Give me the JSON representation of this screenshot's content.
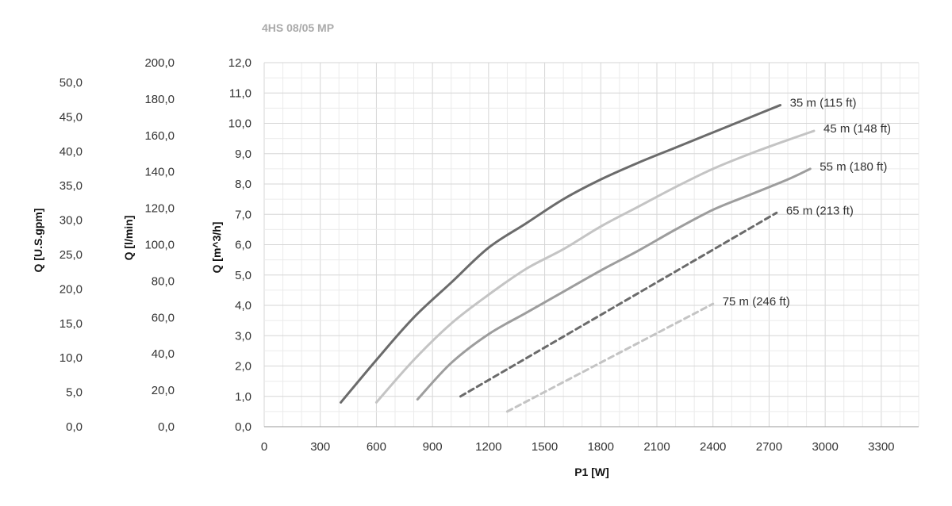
{
  "chart_data": {
    "type": "line",
    "title": "4HS 08/05 MP",
    "xlabel": "P1 [W]",
    "ylabel": "Q [m^3/h]",
    "ylabel_lmin": "Q [l/min]",
    "ylabel_gpm": "Q [U.S.gpm]",
    "xlim": [
      0,
      3500
    ],
    "ylim": [
      0,
      12
    ],
    "lmin_range": [
      0,
      200
    ],
    "gpm_range": [
      0,
      50
    ],
    "grid": true,
    "x_ticks": [
      "0",
      "300",
      "600",
      "900",
      "1200",
      "1500",
      "1800",
      "2100",
      "2400",
      "2700",
      "3000",
      "3300"
    ],
    "y_ticks": [
      "0,0",
      "1,0",
      "2,0",
      "3,0",
      "4,0",
      "5,0",
      "6,0",
      "7,0",
      "8,0",
      "9,0",
      "10,0",
      "11,0",
      "12,0"
    ],
    "lmin_ticks": [
      "0,0",
      "20,0",
      "40,0",
      "60,0",
      "80,0",
      "100,0",
      "120,0",
      "140,0",
      "160,0",
      "180,0",
      "200,0"
    ],
    "gpm_ticks": [
      "0,0",
      "5,0",
      "10,0",
      "15,0",
      "20,0",
      "25,0",
      "30,0",
      "35,0",
      "40,0",
      "45,0",
      "50,0"
    ],
    "series": [
      {
        "name": "35 m (115 ft)",
        "color": "#6b6b6b",
        "dashed": false,
        "points": [
          [
            410,
            0.8
          ],
          [
            600,
            2.2
          ],
          [
            800,
            3.6
          ],
          [
            1000,
            4.75
          ],
          [
            1200,
            5.9
          ],
          [
            1400,
            6.7
          ],
          [
            1600,
            7.5
          ],
          [
            1800,
            8.15
          ],
          [
            2000,
            8.7
          ],
          [
            2200,
            9.2
          ],
          [
            2400,
            9.7
          ],
          [
            2600,
            10.2
          ],
          [
            2760,
            10.6
          ]
        ]
      },
      {
        "name": "45 m (148 ft)",
        "color": "#c4c4c4",
        "dashed": false,
        "points": [
          [
            600,
            0.8
          ],
          [
            800,
            2.2
          ],
          [
            1000,
            3.4
          ],
          [
            1200,
            4.35
          ],
          [
            1400,
            5.2
          ],
          [
            1600,
            5.85
          ],
          [
            1800,
            6.6
          ],
          [
            2000,
            7.25
          ],
          [
            2200,
            7.9
          ],
          [
            2400,
            8.5
          ],
          [
            2600,
            9.0
          ],
          [
            2800,
            9.45
          ],
          [
            2940,
            9.75
          ]
        ]
      },
      {
        "name": "55 m (180 ft)",
        "color": "#9d9d9d",
        "dashed": false,
        "points": [
          [
            820,
            0.9
          ],
          [
            1000,
            2.1
          ],
          [
            1200,
            3.05
          ],
          [
            1400,
            3.75
          ],
          [
            1600,
            4.45
          ],
          [
            1800,
            5.15
          ],
          [
            2000,
            5.8
          ],
          [
            2200,
            6.5
          ],
          [
            2400,
            7.15
          ],
          [
            2600,
            7.65
          ],
          [
            2800,
            8.15
          ],
          [
            2920,
            8.5
          ]
        ]
      },
      {
        "name": "65 m (213 ft)",
        "color": "#6b6b6b",
        "dashed": true,
        "points": [
          [
            1050,
            1.0
          ],
          [
            2740,
            7.05
          ]
        ]
      },
      {
        "name": "75 m (246 ft)",
        "color": "#c4c4c4",
        "dashed": true,
        "points": [
          [
            1300,
            0.5
          ],
          [
            2400,
            4.05
          ]
        ]
      }
    ]
  }
}
